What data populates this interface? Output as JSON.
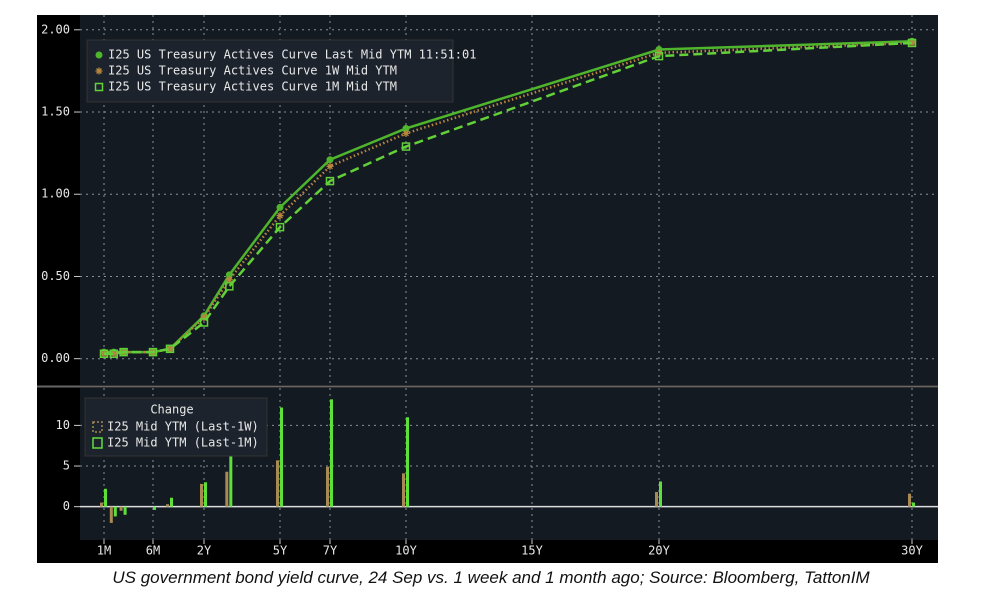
{
  "chart_data": [
    {
      "type": "line",
      "x": [
        0.0833,
        0.1667,
        0.25,
        0.5,
        1,
        2,
        3,
        5,
        7,
        10,
        20,
        30
      ],
      "xlim": [
        0,
        31
      ],
      "ylim": [
        -0.16,
        2.09
      ],
      "yticks": [
        {
          "value": 0,
          "label": "0.00"
        },
        {
          "value": 0.5,
          "label": "0.50"
        },
        {
          "value": 1,
          "label": "1.00"
        },
        {
          "value": 1.5,
          "label": "1.50"
        },
        {
          "value": 2,
          "label": "2.00"
        }
      ],
      "grid": true,
      "series": [
        {
          "name": "I25 US Treasury Actives Curve Last Mid YTM 11:51:01",
          "color": "#4fb52c",
          "marker": "circle",
          "dash": "solid",
          "values": [
            0.04,
            0.04,
            0.04,
            0.04,
            0.06,
            0.26,
            0.51,
            0.92,
            1.21,
            1.4,
            1.88,
            1.93
          ]
        },
        {
          "name": "I25 US Treasury Actives Curve 1W Mid YTM",
          "color": "#b8863e",
          "marker": "star",
          "dash": "dotted",
          "values": [
            0.03,
            0.03,
            0.04,
            0.04,
            0.06,
            0.25,
            0.48,
            0.87,
            1.17,
            1.37,
            1.86,
            1.92
          ]
        },
        {
          "name": "I25 US Treasury Actives Curve 1M Mid YTM",
          "color": "#62d038",
          "marker": "square",
          "dash": "dashed",
          "values": [
            0.03,
            0.03,
            0.04,
            0.04,
            0.06,
            0.22,
            0.44,
            0.8,
            1.08,
            1.29,
            1.84,
            1.92
          ]
        }
      ]
    },
    {
      "type": "bar",
      "legend_title": "Change",
      "x": [
        0.0833,
        0.1667,
        0.25,
        0.5,
        1,
        2,
        3,
        5,
        7,
        10,
        20,
        30
      ],
      "xlim": [
        0,
        31
      ],
      "xticks": [
        {
          "value": 0.0833,
          "label": "1M"
        },
        {
          "value": 0.5,
          "label": "6M"
        },
        {
          "value": 2,
          "label": "2Y"
        },
        {
          "value": 5,
          "label": "5Y"
        },
        {
          "value": 7,
          "label": "7Y"
        },
        {
          "value": 10,
          "label": "10Y"
        },
        {
          "value": 15,
          "label": "15Y"
        },
        {
          "value": 20,
          "label": "20Y"
        },
        {
          "value": 30,
          "label": "30Y"
        }
      ],
      "ylim": [
        -4.1,
        14.6
      ],
      "yticks": [
        0,
        5,
        10
      ],
      "grid": true,
      "series": [
        {
          "name": "I25 Mid YTM (Last-1W)",
          "color": "#a88a52",
          "values": [
            0.5,
            -2,
            -0.5,
            0,
            0.3,
            2.8,
            4.3,
            5.7,
            4.9,
            4.1,
            1.8,
            1.6
          ]
        },
        {
          "name": "I25 Mid YTM (Last-1M)",
          "color": "#5ee03a",
          "values": [
            2.2,
            -1.2,
            -1,
            -0.4,
            1.1,
            3,
            6.8,
            12.2,
            13.2,
            11,
            3.1,
            0.5
          ]
        }
      ]
    }
  ],
  "caption": "US government bond yield curve, 24 Sep vs. 1 week and 1 month ago; Source: Bloomberg, TattonIM"
}
